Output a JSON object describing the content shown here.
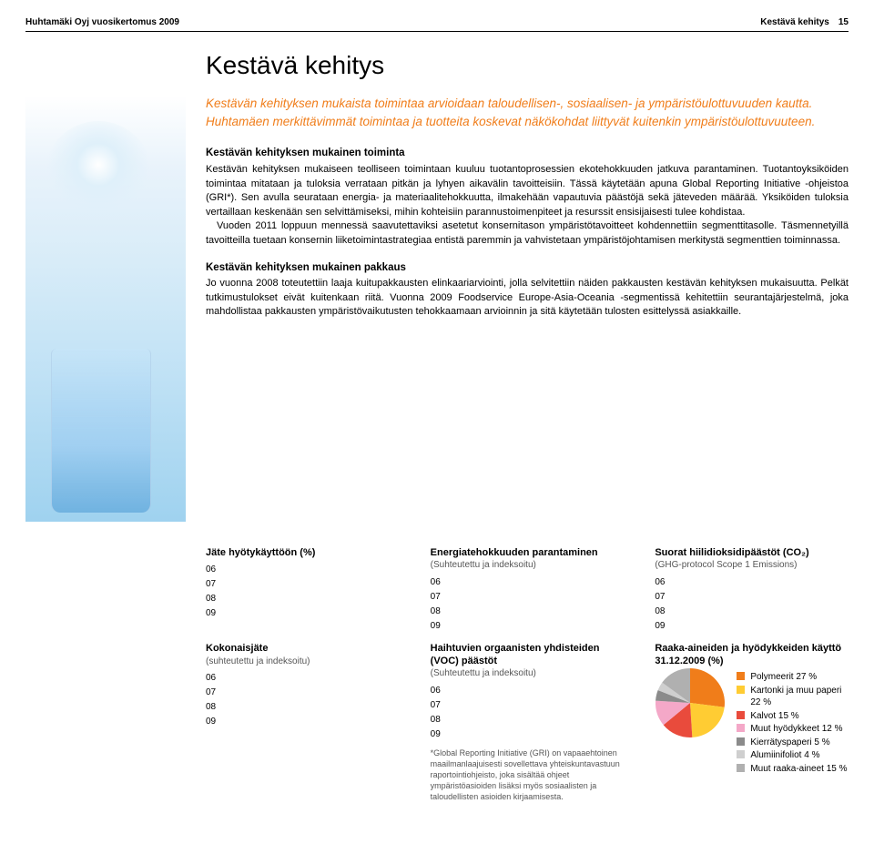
{
  "header": {
    "left": "Huhtamäki Oyj vuosikertomus 2009",
    "section": "Kestävä kehitys",
    "page": "15"
  },
  "title": "Kestävä kehitys",
  "lead": "Kestävän kehityksen mukaista toimintaa arvioidaan taloudellisen-, sosiaalisen- ja ympäristöulottuvuuden kautta. Huhtamäen merkittävimmät toimintaa ja tuotteita koskevat näkökohdat liittyvät kuitenkin ympäristöulottuvuuteen.",
  "sections": [
    {
      "heading": "Kestävän kehityksen mukainen toiminta",
      "body": "Kestävän kehityksen mukaiseen teolliseen toimintaan kuuluu tuotantoprosessien ekotehokkuuden jatkuva parantaminen. Tuotantoyksiköiden toimintaa mitataan ja tuloksia verrataan pitkän ja lyhyen aikavälin tavoitteisiin. Tässä käytetään apuna Global Reporting Initiative -ohjeistoa (GRI*). Sen avulla seurataan energia- ja materiaalitehokkuutta, ilmakehään vapautuvia päästöjä sekä jäteveden määrää. Yksiköiden tuloksia vertaillaan keskenään sen selvittämiseksi, mihin kohteisiin parannustoimenpiteet ja resurssit ensisijaisesti tulee kohdistaa.",
      "body2": "Vuoden 2011 loppuun mennessä saavutettaviksi asetetut konsernitason ympäristötavoitteet kohdennettiin segmenttitasolle. Täsmennetyillä tavoitteilla tuetaan konsernin liiketoimintastrategiaa entistä paremmin ja vahvistetaan ympäristöjohtamisen merkitystä segmenttien toiminnassa."
    },
    {
      "heading": "Kestävän kehityksen mukainen pakkaus",
      "body": "Jo vuonna 2008 toteutettiin laaja kuitupakkausten elinkaariarviointi, jolla selvitettiin näiden pakkausten kestävän kehityksen mukaisuutta. Pelkät tutkimustulokset eivät kuitenkaan riitä. Vuonna 2009 Foodservice Europe-Asia-Oceania -segmentissä kehitettiin seurantajärjestelmä, joka mahdollistaa pakkausten ympäristövaikutusten tehokkaamaan arvioinnin ja sitä käytetään tulosten esittelyssä asiakkaille."
    }
  ],
  "charts_row1": [
    {
      "title": "Jäte hyötykäyttöön (%)",
      "sub": "",
      "years": [
        "06",
        "07",
        "08",
        "09"
      ]
    },
    {
      "title": "Energiatehokkuuden parantaminen",
      "sub": "(Suhteutettu ja indeksoitu)",
      "years": [
        "06",
        "07",
        "08",
        "09"
      ]
    },
    {
      "title": "Suorat hiilidioksidipäästöt (CO₂)",
      "sub": "(GHG-protocol Scope 1 Emissions)",
      "years": [
        "06",
        "07",
        "08",
        "09"
      ]
    }
  ],
  "charts_row2": [
    {
      "title": "Kokonaisjäte",
      "sub": "(suhteutettu ja indeksoitu)",
      "years": [
        "06",
        "07",
        "08",
        "09"
      ]
    },
    {
      "title": "Haihtuvien orgaanisten yhdisteiden (VOC) päästöt",
      "sub": "(Suhteutettu ja indeksoitu)",
      "years": [
        "06",
        "07",
        "08",
        "09"
      ]
    }
  ],
  "pie_block": {
    "title": "Raaka-aineiden ja hyödykkeiden käyttö 31.12.2009 (%)",
    "items": [
      {
        "label": "Polymeerit 27 %",
        "color": "#f07d1a",
        "value": 27
      },
      {
        "label": "Kartonki ja muu paperi 22 %",
        "color": "#ffcc33",
        "value": 22
      },
      {
        "label": "Kalvot 15 %",
        "color": "#e94b3c",
        "value": 15
      },
      {
        "label": "Muut hyödykkeet 12 %",
        "color": "#f4a8c8",
        "value": 12
      },
      {
        "label": "Kierrätyspaperi 5 %",
        "color": "#8b8b8b",
        "value": 5
      },
      {
        "label": "Alumiinifoliot 4 %",
        "color": "#cfcfcf",
        "value": 4
      },
      {
        "label": "Muut raaka-aineet 15 %",
        "color": "#b0b0b0",
        "value": 15
      }
    ]
  },
  "footnote": "*Global Reporting Initiative (GRI) on vapaaehtoinen maailmanlaajuisesti sovellettava yhteiskuntavastuun raportointiohjeisto, joka sisältää ohjeet ympäristöasioiden lisäksi myös sosiaalisten ja taloudellisten asioiden kirjaamisesta.",
  "colors": {
    "accent": "#f07d1a",
    "text": "#000000",
    "muted": "#555555"
  }
}
